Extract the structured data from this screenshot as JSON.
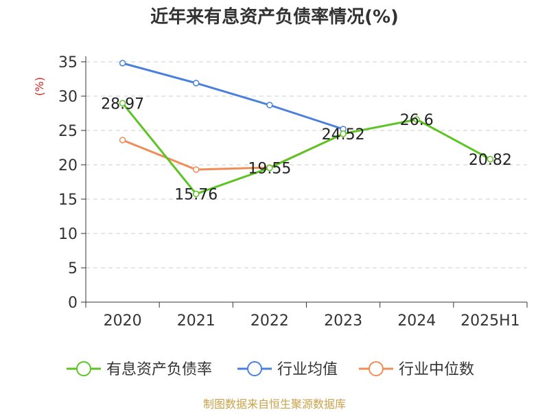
{
  "chart_data": {
    "type": "line",
    "title": "近年来有息资产负债率情况(%)",
    "ylabel": "(%)",
    "ylim": [
      0,
      35
    ],
    "yticks": [
      0,
      5,
      10,
      15,
      20,
      25,
      30,
      35
    ],
    "grid": true,
    "legend_position": "bottom",
    "categories": [
      "2020",
      "2021",
      "2022",
      "2023",
      "2024",
      "2025H1"
    ],
    "series": [
      {
        "name": "有息资产负债率",
        "color": "#5cc424",
        "values": [
          28.97,
          15.76,
          19.55,
          24.52,
          26.6,
          20.82
        ],
        "labels": [
          "28.97",
          "15.76",
          "19.55",
          "24.52",
          "26.6",
          "20.82"
        ]
      },
      {
        "name": "行业均值",
        "color": "#4a7fdc",
        "values": [
          34.8,
          31.9,
          28.7,
          25.2,
          null,
          null
        ]
      },
      {
        "name": "行业中位数",
        "color": "#f08c56",
        "values": [
          23.6,
          19.3,
          19.6,
          24.5,
          null,
          null
        ]
      }
    ],
    "ylabel_color": "#d9241c"
  },
  "source": "制图数据来自恒生聚源数据库",
  "source_color": "#c8a24a"
}
